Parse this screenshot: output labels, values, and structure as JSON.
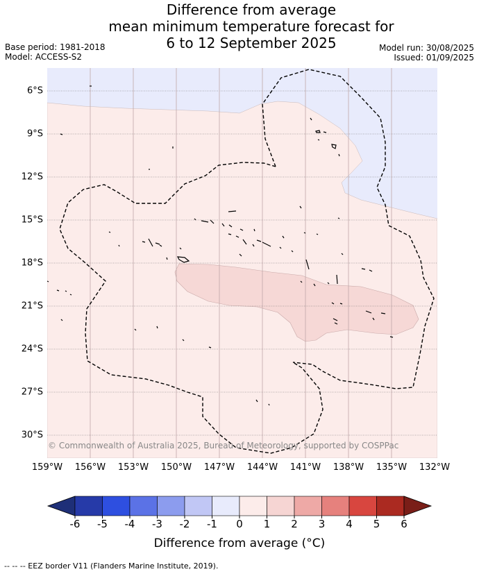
{
  "title": {
    "line1": "Difference from average",
    "line2": "mean minimum temperature forecast for",
    "line3": "6 to 12 September 2025"
  },
  "meta": {
    "base_period": "Base period: 1981-2018",
    "model": "Model: ACCESS-S2",
    "model_run": "Model run: 30/08/2025",
    "issued": "Issued: 01/09/2025"
  },
  "map": {
    "lat_labels": [
      "6°S",
      "9°S",
      "12°S",
      "15°S",
      "18°S",
      "21°S",
      "24°S",
      "27°S",
      "30°S"
    ],
    "lon_labels": [
      "159°W",
      "156°W",
      "153°W",
      "150°W",
      "147°W",
      "144°W",
      "141°W",
      "138°W",
      "135°W",
      "132°W"
    ],
    "regions": [
      {
        "category": "-1 to 0",
        "color": "#e8ebfc"
      },
      {
        "category": "0 to 1",
        "color": "#fcecea"
      },
      {
        "category": "1 to 2",
        "color": "#f6d8d6"
      }
    ],
    "copyright": "© Commonwealth of Australia 2025, Bureau of Meteorology, supported by COSPPac"
  },
  "colorbar": {
    "ticks": [
      "-6",
      "-5",
      "-4",
      "-3",
      "-2",
      "-1",
      "0",
      "1",
      "2",
      "3",
      "4",
      "5",
      "6"
    ],
    "colors": [
      "#263aa8",
      "#2e4fe0",
      "#5b72e6",
      "#8c9cee",
      "#c1c7f5",
      "#e8ebfc",
      "#fcecea",
      "#f6d5d3",
      "#eea9a6",
      "#e6817d",
      "#d8463f",
      "#ab2a21"
    ],
    "under_color": "#1e2f78",
    "over_color": "#7a1e18",
    "label": "Difference from average (°C)"
  },
  "footnote": "--  --  -- EEZ border V11 (Flanders Marine Institute, 2019)."
}
